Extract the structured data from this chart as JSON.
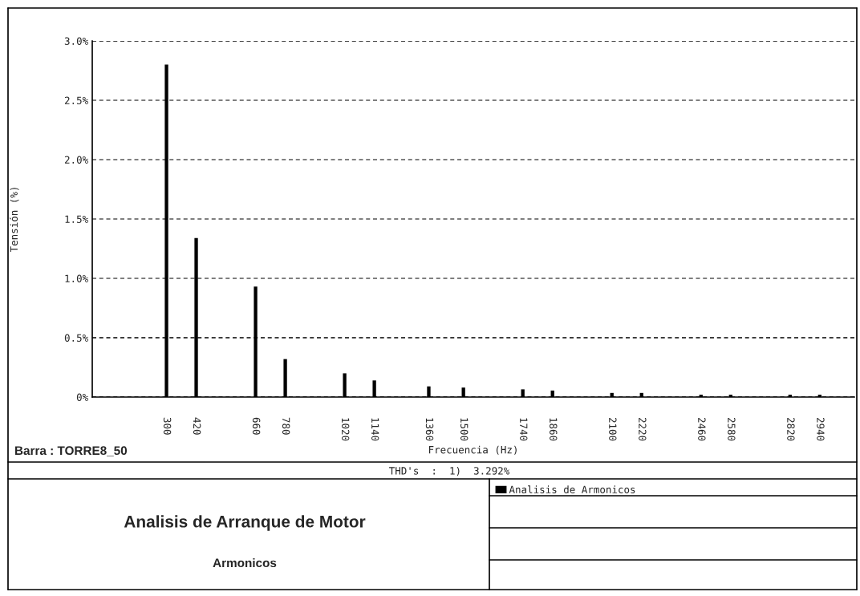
{
  "chart_data": {
    "type": "bar",
    "title": "Analisis de Arranque de Motor",
    "subtitle": "Armonicos",
    "xlabel": "Frecuencia (Hz)",
    "ylabel": "Tensión (%)",
    "annotations": [
      "Barra : TORRE8_50",
      "THD's  :  1)  3.292%"
    ],
    "x": [
      300,
      420,
      660,
      780,
      1020,
      1140,
      1360,
      1500,
      1740,
      1860,
      2100,
      2220,
      2460,
      2580,
      2820,
      2940
    ],
    "series": [
      {
        "name": "Analisis de Armonicos",
        "color": "#000000",
        "values": [
          2.8,
          1.34,
          0.93,
          0.32,
          0.2,
          0.14,
          0.09,
          0.08,
          0.065,
          0.055,
          0.035,
          0.035,
          0.02,
          0.02,
          0.02,
          0.02
        ]
      }
    ],
    "xlim": [
      0,
      3080
    ],
    "xticks": [
      300,
      420,
      660,
      780,
      1020,
      1140,
      1360,
      1500,
      1740,
      1860,
      2100,
      2220,
      2460,
      2580,
      2820,
      2940
    ],
    "ylim": [
      0,
      3.0
    ],
    "yticks": [
      {
        "value": 0,
        "label": "0%"
      },
      {
        "value": 0.5,
        "label": "0.5%"
      },
      {
        "value": 1.0,
        "label": "1.0%"
      },
      {
        "value": 1.5,
        "label": "1.5%"
      },
      {
        "value": 2.0,
        "label": "2.0%"
      },
      {
        "value": 2.5,
        "label": "2.5%"
      },
      {
        "value": 3.0,
        "label": "3.0%"
      }
    ],
    "grid": "y",
    "legend": "bottom right"
  }
}
